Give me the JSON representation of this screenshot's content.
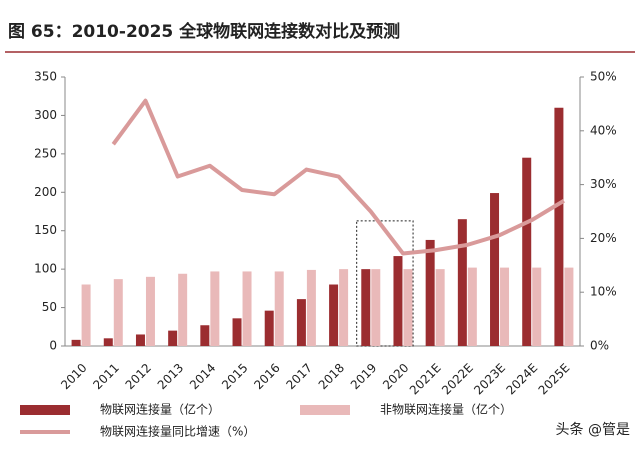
{
  "chart_data": {
    "type": "bar_line",
    "title": "图 65：2010-2025 全球物联网连接数对比及预测",
    "categories": [
      "2010",
      "2011",
      "2012",
      "2013",
      "2014",
      "2015",
      "2016",
      "2017",
      "2018",
      "2019",
      "2020",
      "2021E",
      "2022E",
      "2023E",
      "2024E",
      "2025E"
    ],
    "series": [
      {
        "name": "物联网连接量（亿个）",
        "color": "#9b2d30",
        "type": "bar",
        "values": [
          8,
          10,
          15,
          20,
          27,
          36,
          46,
          61,
          80,
          100,
          117,
          138,
          165,
          199,
          245,
          310
        ]
      },
      {
        "name": "非物联网连接量（亿个）",
        "color": "#e9b9b9",
        "type": "bar",
        "values": [
          80,
          87,
          90,
          94,
          97,
          97,
          97,
          99,
          100,
          100,
          100,
          100,
          102,
          102,
          102,
          102
        ]
      },
      {
        "name": "物联网连接量同比增速（%）",
        "color": "#d99a9a",
        "type": "line",
        "axis": "y2",
        "values": [
          null,
          37.5,
          45.6,
          31.5,
          33.5,
          29,
          28.2,
          32.8,
          31.5,
          25,
          17.2,
          17.8,
          18.8,
          20.6,
          23.4,
          27
        ]
      }
    ],
    "ylim": [
      0,
      350
    ],
    "yticks": [
      0,
      50,
      100,
      150,
      200,
      250,
      300,
      350
    ],
    "y2lim": [
      0,
      50
    ],
    "y2ticks": [
      {
        "value": 0,
        "label": "0%"
      },
      {
        "value": 10,
        "label": "10%"
      },
      {
        "value": 20,
        "label": "20%"
      },
      {
        "value": 30,
        "label": "30%"
      },
      {
        "value": 40,
        "label": "40%"
      },
      {
        "value": 50,
        "label": "50%"
      }
    ],
    "watermark": "头条 @管是"
  }
}
